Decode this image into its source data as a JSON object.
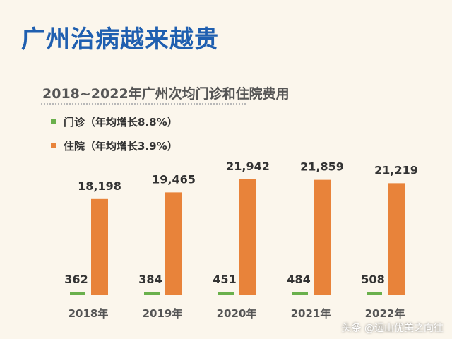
{
  "page": {
    "headline": "广州治病越来越贵",
    "watermark": "头条 @远山优美之向往"
  },
  "colors": {
    "headline": "#1f5fb0",
    "background": "#fbf6ec"
  },
  "chart_data": {
    "type": "bar",
    "title": "2018~2022年广州次均门诊和住院费用",
    "categories": [
      "2018年",
      "2019年",
      "2020年",
      "2021年",
      "2022年"
    ],
    "series": [
      {
        "name": "门诊（年均增长8.8%）",
        "color": "#6ab04c",
        "values": [
          362,
          384,
          451,
          484,
          508
        ],
        "labels": [
          "362",
          "384",
          "451",
          "484",
          "508"
        ]
      },
      {
        "name": "住院（年均增长3.9%）",
        "color": "#e8833a",
        "values": [
          18198,
          19465,
          21942,
          21859,
          21219
        ],
        "labels": [
          "18,198",
          "19,465",
          "21,942",
          "21,859",
          "21,219"
        ]
      }
    ],
    "ylim": [
      0,
      21942
    ],
    "grid": false,
    "legend": "top-left"
  }
}
